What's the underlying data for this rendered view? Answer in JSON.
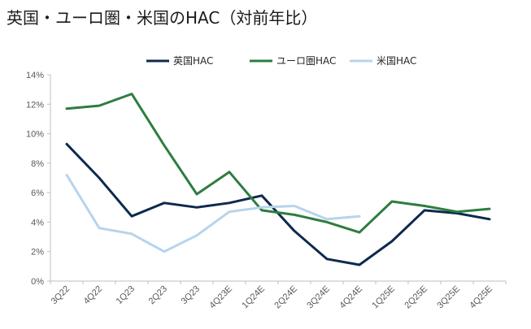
{
  "chart_data": {
    "type": "line",
    "title": "英国・ユーロ圏・米国のHAC（対前年比）",
    "xlabel": "",
    "ylabel": "",
    "x": [
      "3Q22",
      "4Q22",
      "1Q23",
      "2Q23",
      "3Q23",
      "4Q23E",
      "1Q24E",
      "2Q24E",
      "3Q24E",
      "4Q24E",
      "1Q25E",
      "2Q25E",
      "3Q25E",
      "4Q25E"
    ],
    "ylim": [
      0,
      14
    ],
    "yticks": [
      "0%",
      "2%",
      "4%",
      "6%",
      "8%",
      "10%",
      "12%",
      "14%"
    ],
    "grid": false,
    "legend": "top",
    "series": [
      {
        "name": "英国HAC",
        "color": "#0d2a4f",
        "values": [
          9.3,
          7.0,
          4.4,
          5.3,
          5.0,
          5.3,
          5.8,
          3.4,
          1.5,
          1.1,
          2.7,
          4.8,
          4.6,
          4.2
        ]
      },
      {
        "name": "ユーロ圏HAC",
        "color": "#2e7d40",
        "values": [
          11.7,
          11.9,
          12.7,
          9.2,
          5.9,
          7.4,
          4.8,
          4.5,
          4.0,
          3.3,
          5.4,
          5.1,
          4.7,
          4.9
        ]
      },
      {
        "name": "米国HAC",
        "color": "#b7d4ec",
        "values": [
          7.2,
          3.6,
          3.2,
          2.0,
          3.1,
          4.7,
          5.0,
          5.1,
          4.2,
          4.4,
          null,
          null,
          null,
          null
        ]
      }
    ]
  }
}
